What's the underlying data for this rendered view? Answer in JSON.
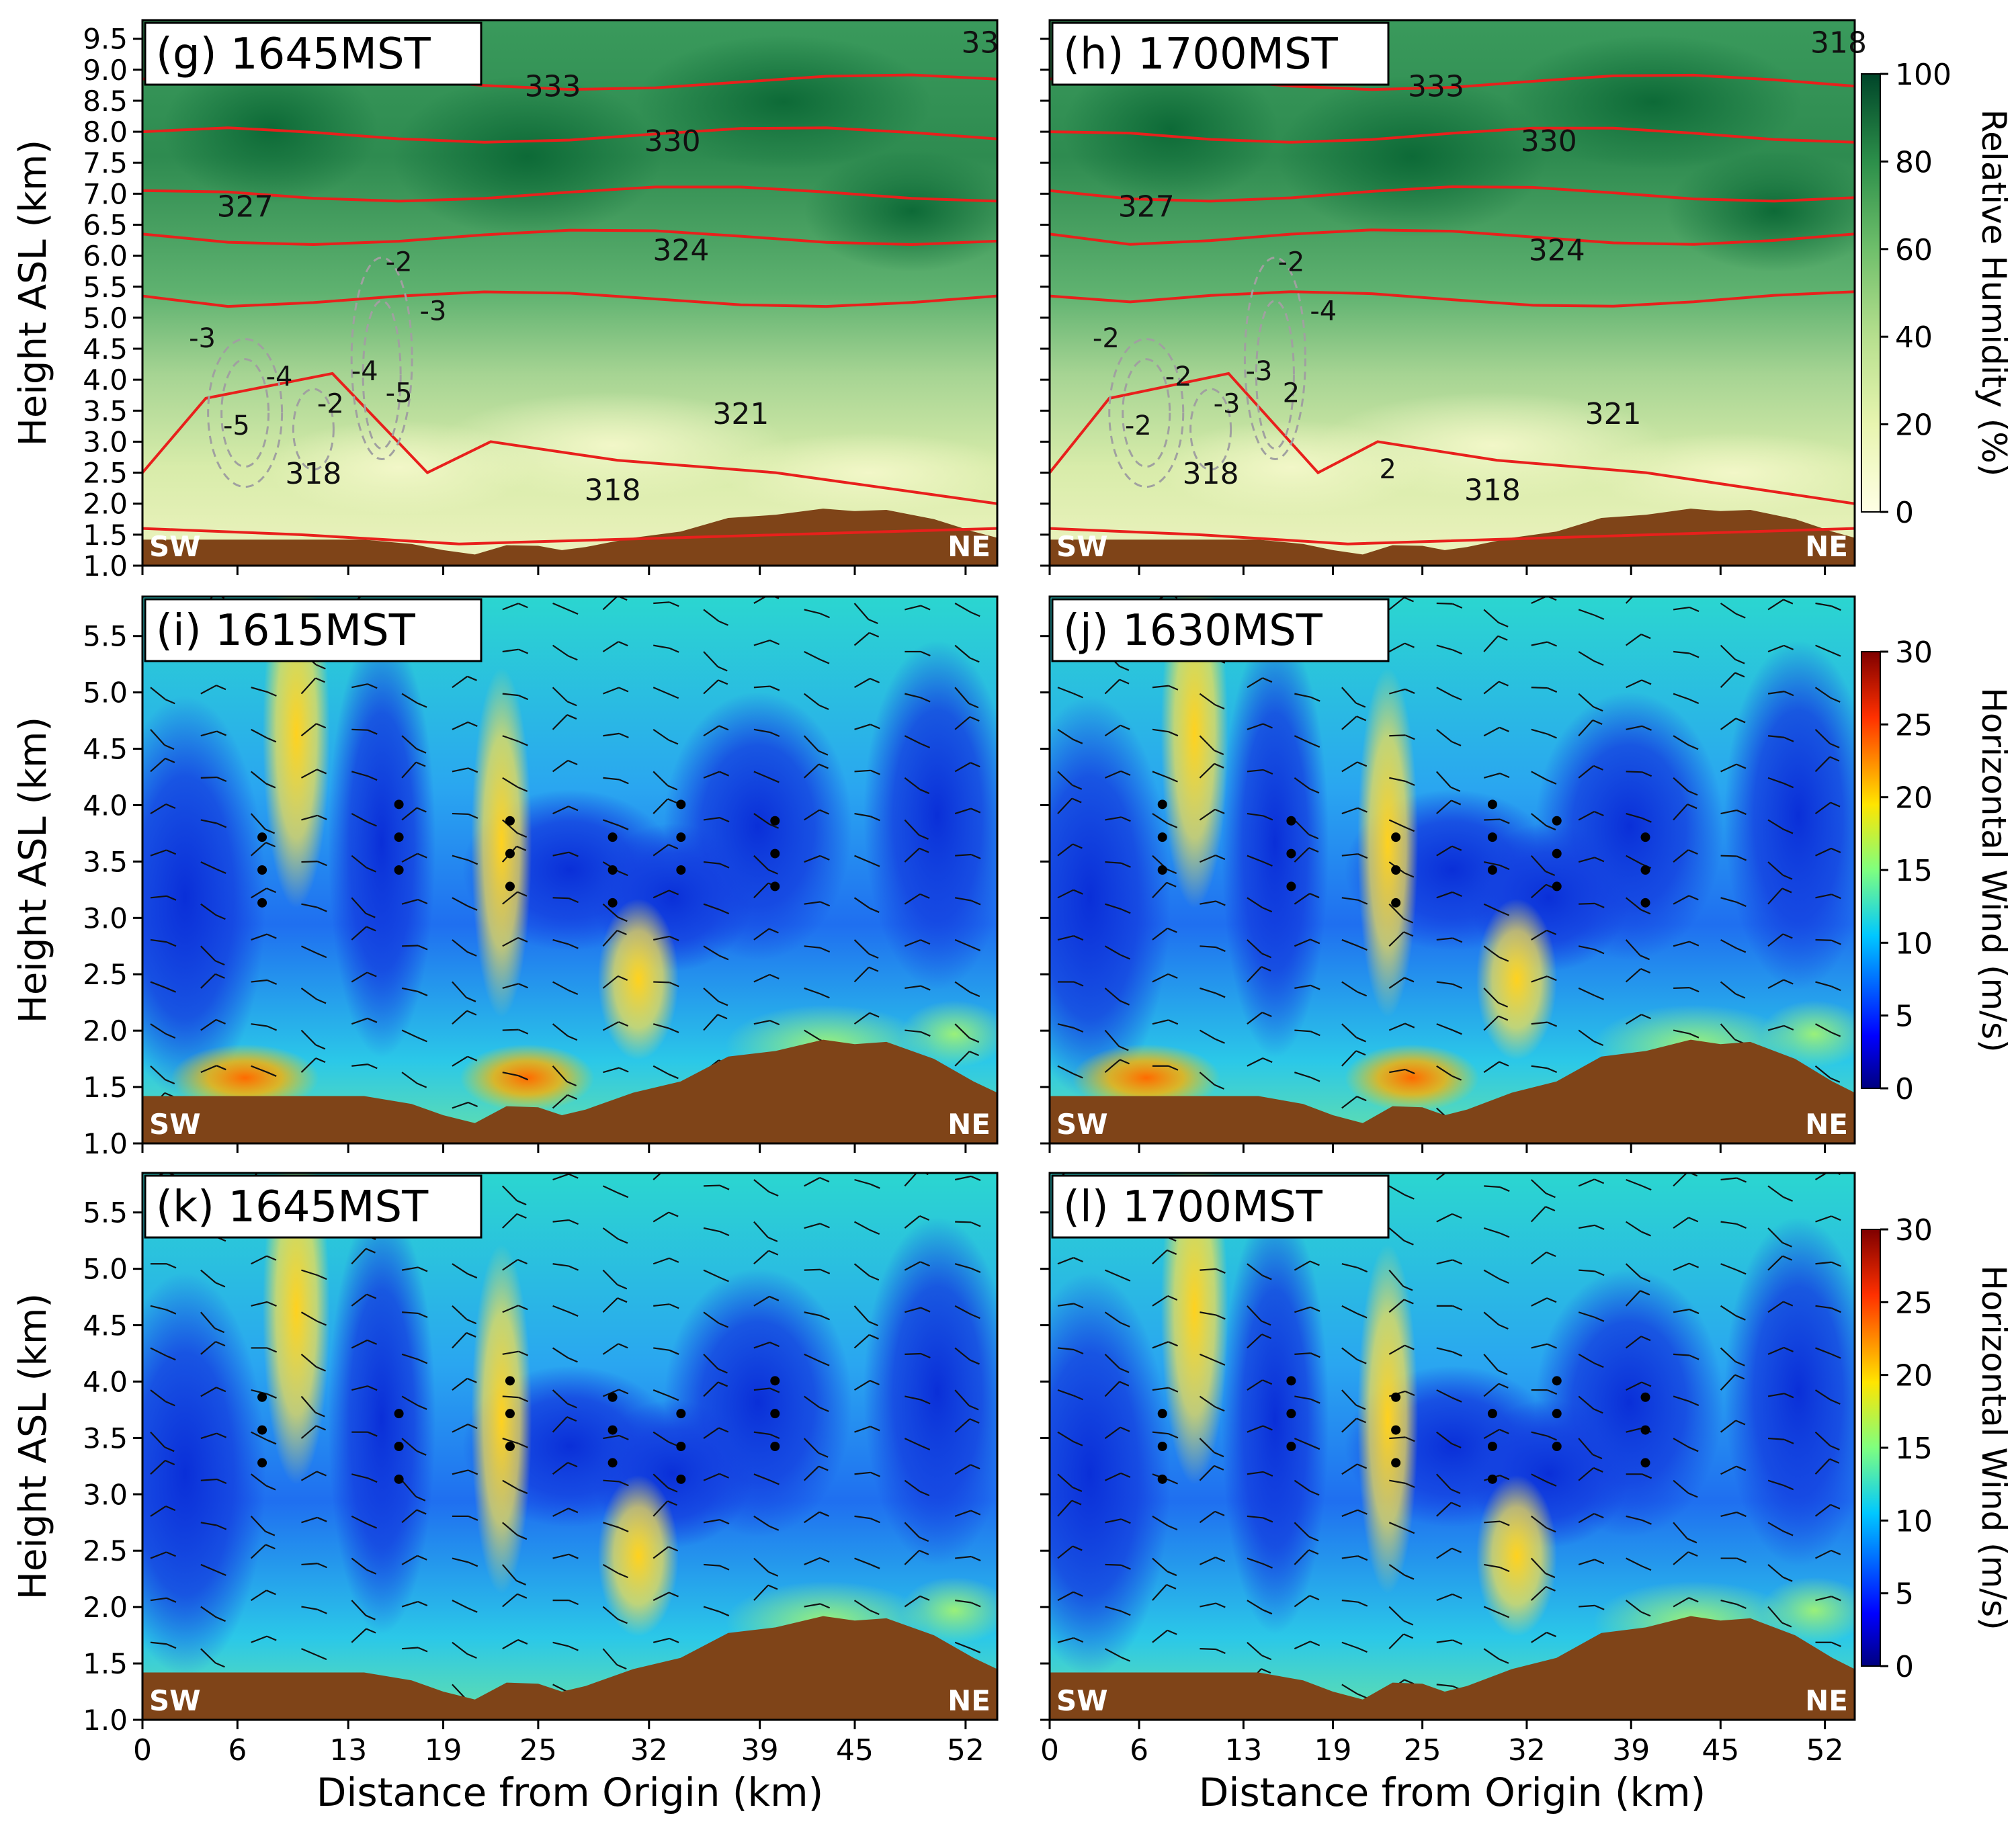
{
  "figure": {
    "y_axis_label": "Height ASL (km)",
    "x_axis_label": "Distance from Origin (km)",
    "x_ticks": [
      "0",
      "6",
      "13",
      "19",
      "25",
      "32",
      "39",
      "45",
      "52"
    ],
    "corner_left": "SW",
    "corner_right": "NE",
    "colors": {
      "terrain": "#7f4418",
      "theta": "#e8201c",
      "w_contour": "#a0a0a0",
      "barb": "#111111"
    }
  },
  "chart_data": [
    {
      "id": "g",
      "type": "heatmap",
      "title": "(g) 1645MST",
      "field": "relative_humidity",
      "ylim": [
        1.0,
        9.8
      ],
      "yticks": [
        "1.0",
        "1.5",
        "2.0",
        "2.5",
        "3.0",
        "3.5",
        "4.0",
        "4.5",
        "5.0",
        "5.5",
        "6.0",
        "6.5",
        "7.0",
        "7.5",
        "8.0",
        "8.5",
        "9.0",
        "9.5"
      ],
      "theta_labels": [
        "333",
        "330",
        "327",
        "324",
        "321",
        "318",
        "318",
        "33"
      ],
      "w_labels": [
        "-3",
        "-4",
        "-5",
        "-2",
        "-2",
        "-3",
        "-4",
        "-5"
      ]
    },
    {
      "id": "h",
      "type": "heatmap",
      "title": "(h) 1700MST",
      "field": "relative_humidity",
      "ylim": [
        1.0,
        9.8
      ],
      "theta_labels": [
        "333",
        "330",
        "327",
        "324",
        "321",
        "318",
        "318",
        "318"
      ],
      "w_labels": [
        "-2",
        "-2",
        "-2",
        "-3",
        "-2",
        "-4",
        "-3",
        "2",
        "2"
      ]
    },
    {
      "id": "i",
      "type": "heatmap",
      "title": "(i) 1615MST",
      "field": "horizontal_wind",
      "ylim": [
        1.0,
        5.85
      ],
      "yticks": [
        "1.0",
        "1.5",
        "2.0",
        "2.5",
        "3.0",
        "3.5",
        "4.0",
        "4.5",
        "5.0",
        "5.5"
      ]
    },
    {
      "id": "j",
      "type": "heatmap",
      "title": "(j) 1630MST",
      "field": "horizontal_wind",
      "ylim": [
        1.0,
        5.85
      ]
    },
    {
      "id": "k",
      "type": "heatmap",
      "title": "(k) 1645MST",
      "field": "horizontal_wind",
      "ylim": [
        1.0,
        5.85
      ]
    },
    {
      "id": "l",
      "type": "heatmap",
      "title": "(l) 1700MST",
      "field": "horizontal_wind",
      "ylim": [
        1.0,
        5.85
      ]
    }
  ],
  "colorbars": {
    "rh": {
      "label": "Relative Humidity (%)",
      "ticks": [
        "0",
        "20",
        "40",
        "60",
        "80",
        "100"
      ]
    },
    "wind": {
      "label": "Horizontal Wind (m/s)",
      "ticks": [
        "0",
        "5",
        "10",
        "15",
        "20",
        "25",
        "30"
      ]
    }
  }
}
